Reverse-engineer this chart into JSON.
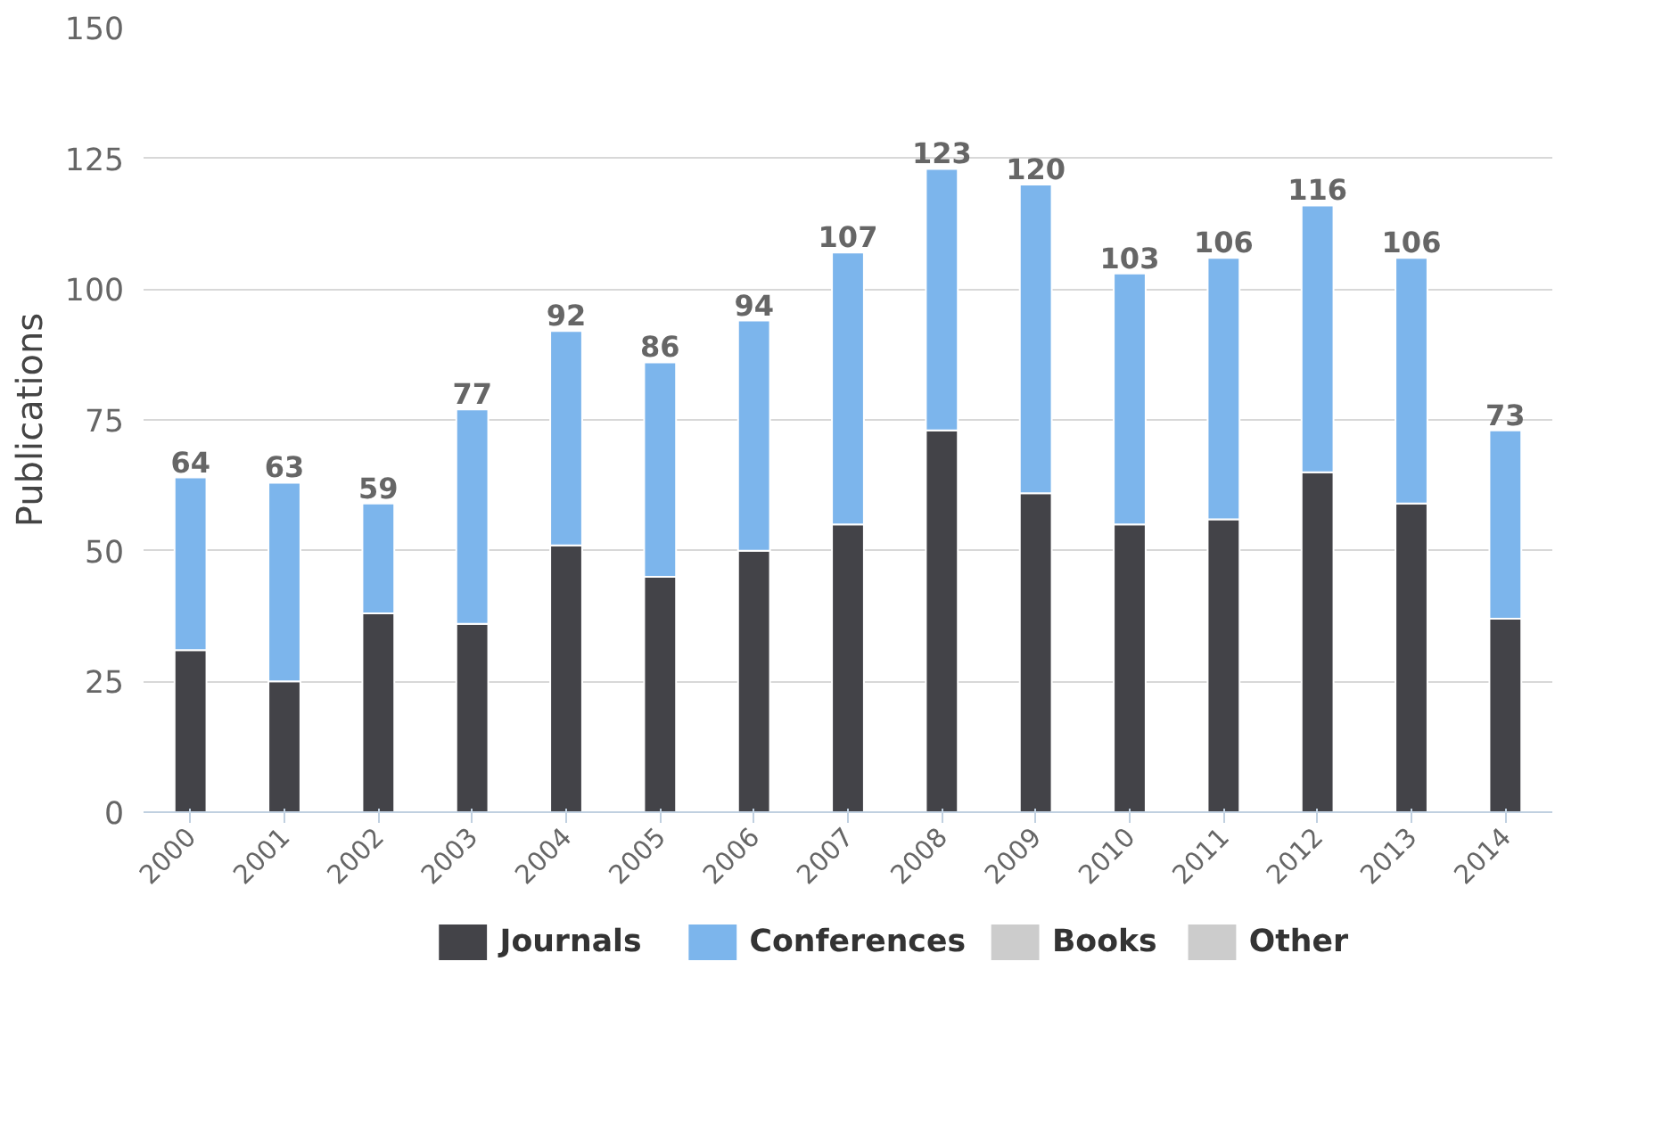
{
  "chart_data": {
    "type": "bar",
    "stacked": true,
    "ylabel": "Publications",
    "categories": [
      "2000",
      "2001",
      "2002",
      "2003",
      "2004",
      "2005",
      "2006",
      "2007",
      "2008",
      "2009",
      "2010",
      "2011",
      "2012",
      "2013",
      "2014"
    ],
    "series": [
      {
        "name": "Journals",
        "color": "#434348",
        "values": [
          31,
          25,
          38,
          36,
          51,
          45,
          50,
          55,
          73,
          61,
          55,
          56,
          65,
          59,
          37
        ]
      },
      {
        "name": "Conferences",
        "color": "#7cb5ec",
        "values": [
          33,
          38,
          21,
          41,
          41,
          41,
          44,
          52,
          50,
          59,
          48,
          50,
          51,
          47,
          36
        ]
      },
      {
        "name": "Books",
        "color": "#cccccc",
        "values": [
          null,
          null,
          null,
          null,
          null,
          null,
          null,
          null,
          null,
          null,
          null,
          null,
          null,
          null,
          null
        ]
      },
      {
        "name": "Other",
        "color": "#cccccc",
        "values": [
          null,
          null,
          null,
          null,
          null,
          null,
          null,
          null,
          null,
          null,
          null,
          null,
          null,
          null,
          null
        ]
      }
    ],
    "totals": [
      "64",
      "63",
      "59",
      "77",
      "92",
      "86",
      "94",
      "107",
      "123",
      "120",
      "103",
      "106",
      "116",
      "106",
      "73"
    ],
    "ylim": [
      0,
      150
    ],
    "yticks": [
      0,
      25,
      50,
      75,
      100,
      125,
      150
    ],
    "grid": "y",
    "legend": "bottom"
  }
}
